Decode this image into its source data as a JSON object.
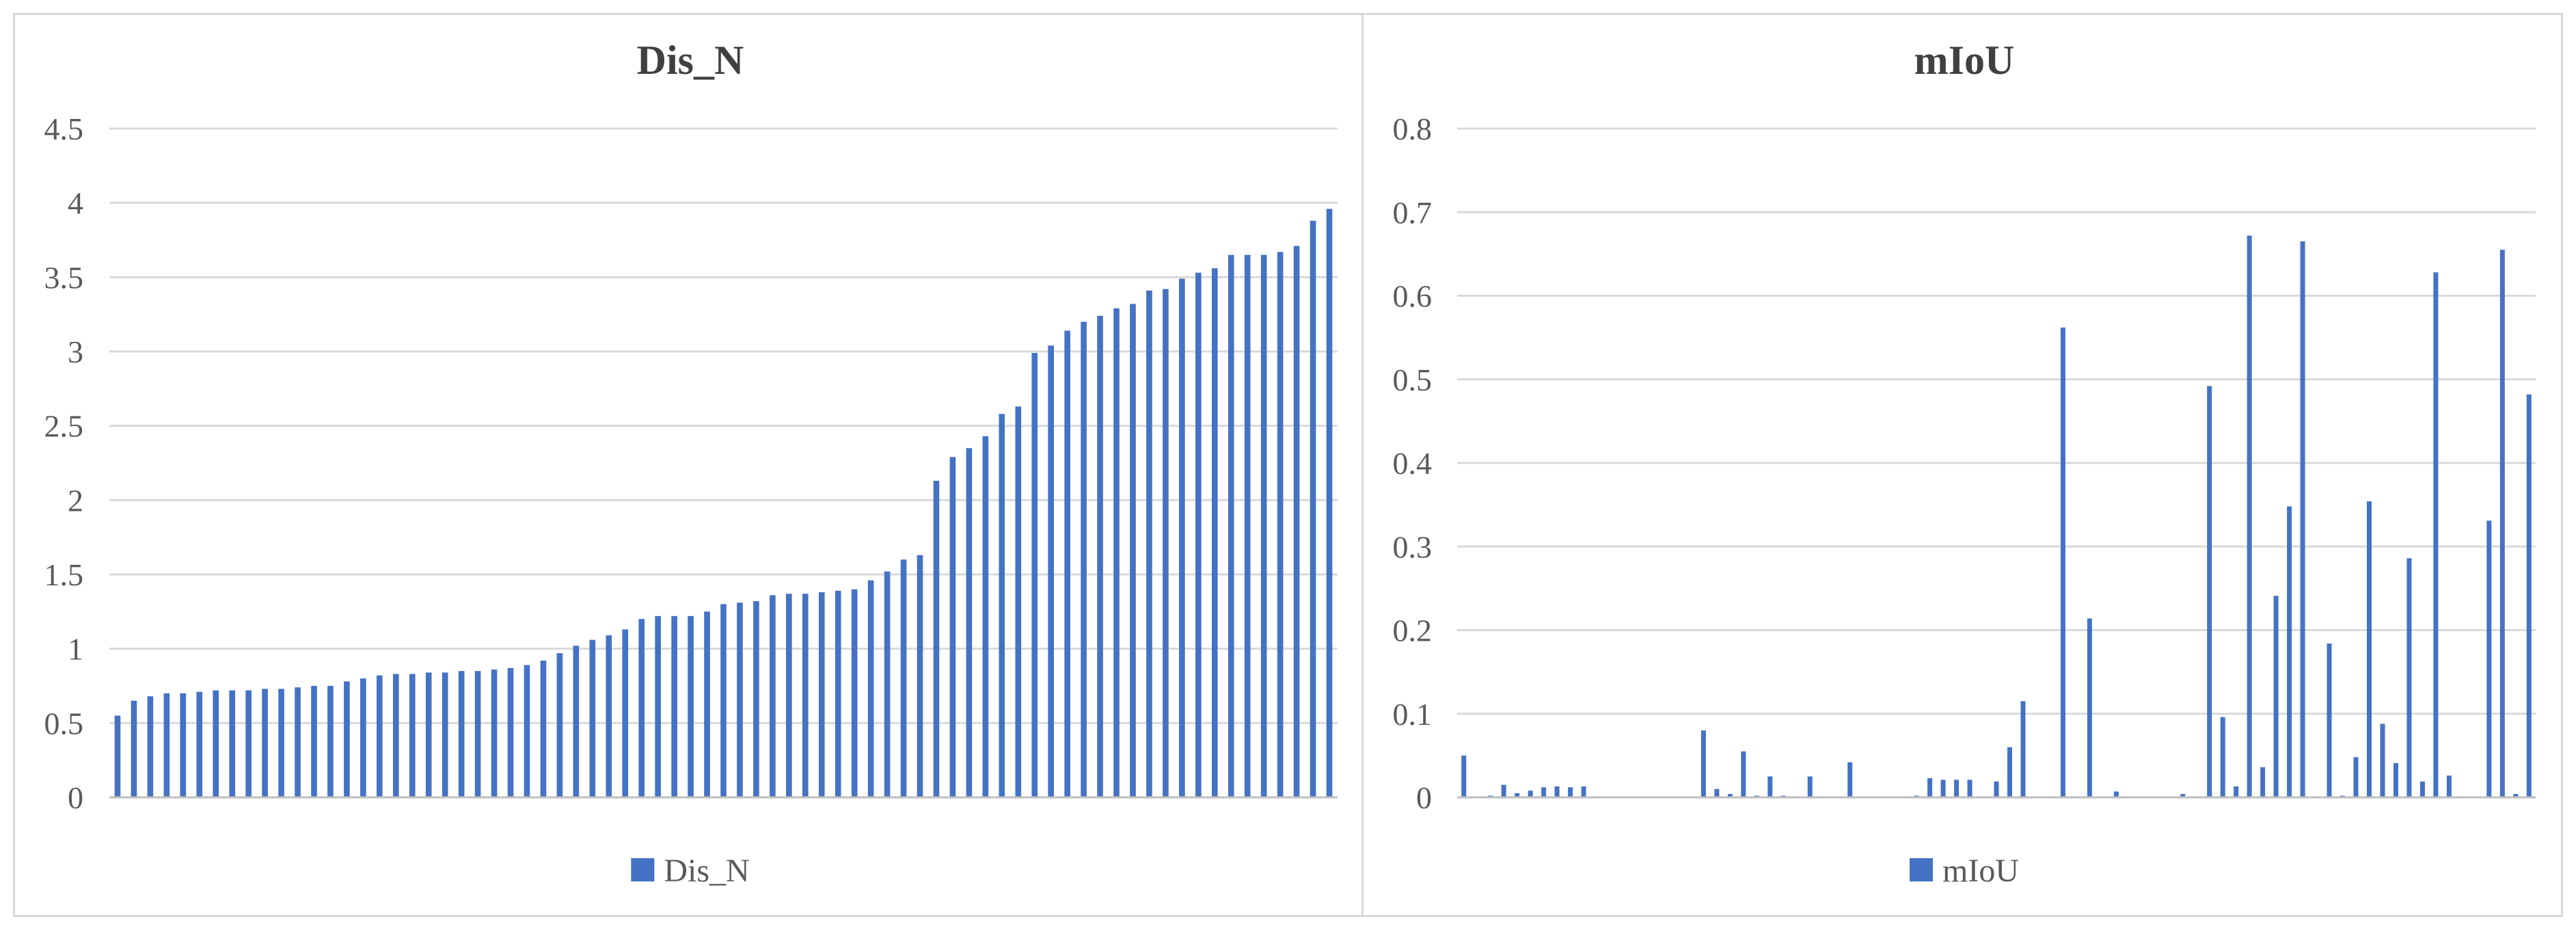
{
  "colors": {
    "bar": "#4472c4",
    "grid": "#d9d9d9",
    "text": "#595959",
    "title": "#404040",
    "border": "#d9d9d9"
  },
  "chart_data": [
    {
      "type": "bar",
      "title": "Dis_N",
      "xlabel": "",
      "ylabel": "",
      "ylim": [
        0,
        4.5
      ],
      "yticks": [
        "0",
        "0.5",
        "1",
        "1.5",
        "2",
        "2.5",
        "3",
        "3.5",
        "4",
        "4.5"
      ],
      "grid": true,
      "legend": "bottom",
      "series": [
        {
          "name": "Dis_N",
          "values": [
            0.55,
            0.65,
            0.68,
            0.7,
            0.7,
            0.71,
            0.72,
            0.72,
            0.72,
            0.73,
            0.73,
            0.74,
            0.75,
            0.75,
            0.78,
            0.8,
            0.82,
            0.83,
            0.83,
            0.84,
            0.84,
            0.85,
            0.85,
            0.86,
            0.87,
            0.89,
            0.92,
            0.97,
            1.02,
            1.06,
            1.09,
            1.13,
            1.2,
            1.22,
            1.22,
            1.22,
            1.25,
            1.3,
            1.31,
            1.32,
            1.36,
            1.37,
            1.37,
            1.38,
            1.39,
            1.4,
            1.46,
            1.52,
            1.6,
            1.63,
            2.13,
            2.29,
            2.35,
            2.43,
            2.58,
            2.63,
            2.99,
            3.04,
            3.14,
            3.2,
            3.24,
            3.29,
            3.32,
            3.41,
            3.42,
            3.49,
            3.53,
            3.56,
            3.65,
            3.65,
            3.65,
            3.67,
            3.71,
            3.88,
            3.96
          ]
        }
      ]
    },
    {
      "type": "bar",
      "title": "mIoU",
      "xlabel": "",
      "ylabel": "",
      "ylim": [
        0,
        0.8
      ],
      "yticks": [
        "0",
        "0.1",
        "0.2",
        "0.3",
        "0.4",
        "0.5",
        "0.6",
        "0.7",
        "0.8"
      ],
      "grid": true,
      "legend": "bottom",
      "series": [
        {
          "name": "mIoU",
          "values": [
            0.05,
            0,
            0.002,
            0.015,
            0.005,
            0.008,
            0.012,
            0.013,
            0.012,
            0.013,
            0,
            0,
            0,
            0,
            0.001,
            0.001,
            0.001,
            0,
            0.08,
            0.01,
            0.004,
            0.055,
            0.002,
            0.025,
            0.002,
            0,
            0.025,
            0,
            0,
            0.042,
            0,
            0,
            0,
            0,
            0.002,
            0.023,
            0.021,
            0.021,
            0.021,
            0,
            0.019,
            0.06,
            0.115,
            0,
            0,
            0.562,
            0,
            0.214,
            0,
            0.007,
            0,
            0,
            0,
            0,
            0.004,
            0,
            0.492,
            0.096,
            0.013,
            0.672,
            0.036,
            0.241,
            0.348,
            0.665,
            0,
            0.184,
            0.002,
            0.048,
            0.354,
            0.088,
            0.041,
            0.286,
            0.019,
            0.628,
            0.026,
            0,
            0,
            0.331,
            0.655,
            0.004,
            0.482
          ]
        }
      ]
    }
  ]
}
